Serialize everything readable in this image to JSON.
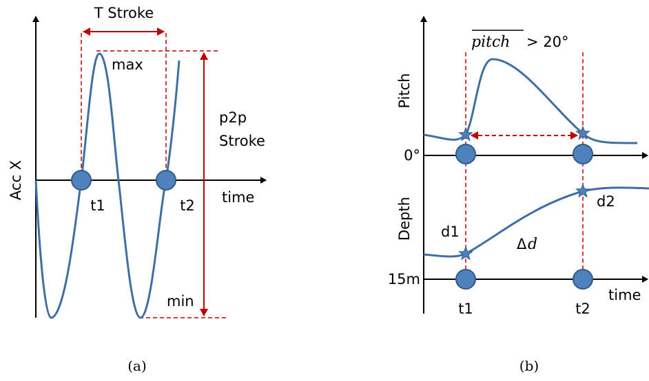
{
  "panel_a": {
    "y_label": "Acc X",
    "x_label": "time",
    "period_label": "T Stroke",
    "max_label": "max",
    "min_label": "min",
    "amplitude_label_line1": "p2p",
    "amplitude_label_line2": "Stroke",
    "t1_label": "t1",
    "t2_label": "t2",
    "caption": "(a)"
  },
  "panel_b": {
    "pitch_label": "Pitch",
    "depth_label": "Depth",
    "zero_label": "0°",
    "depth_ref_label": "15m",
    "time_label": "time",
    "pitch_mean_label": "pitch",
    "pitch_threshold_label": "> 20°",
    "d1_label": "d1",
    "d2_label": "d2",
    "delta_symbol": "Δ",
    "delta_var": "d",
    "t1_label": "t1",
    "t2_label": "t2",
    "caption": "(b)"
  },
  "colors": {
    "curve": "#3e6ea3",
    "marker_fill": "#4f81bd",
    "marker_stroke": "#2f5a8a",
    "guide": "#c00000",
    "axis": "#000000"
  }
}
